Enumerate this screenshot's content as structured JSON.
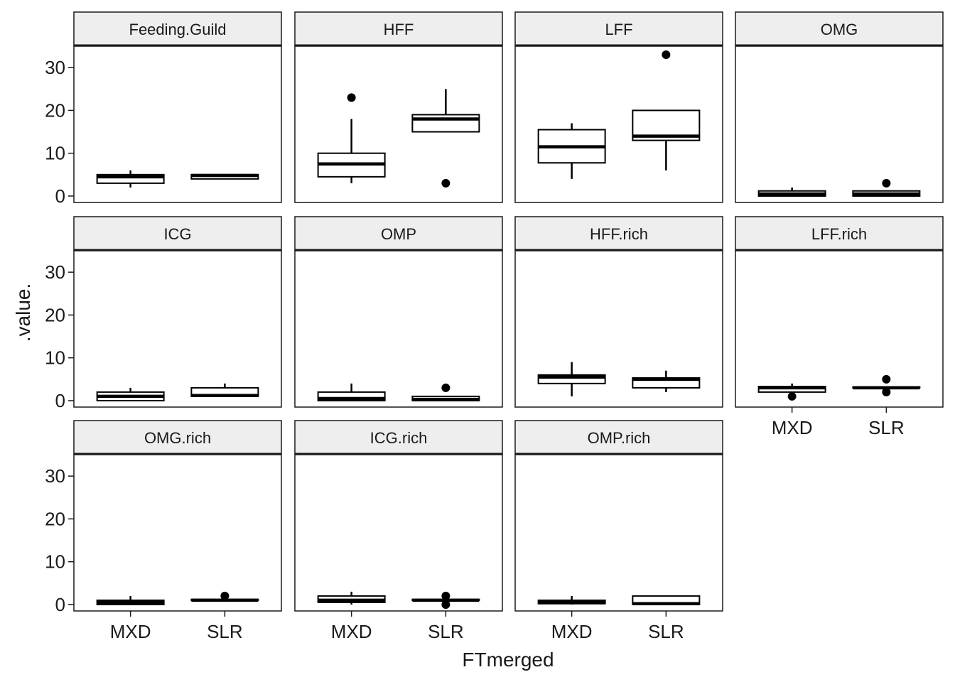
{
  "chart_data": {
    "type": "boxplot",
    "layout": "facet_wrap",
    "ncol": 4,
    "xlabel": "FTmerged",
    "ylabel": ".value.",
    "categories": [
      "MXD",
      "SLR"
    ],
    "ylim": [
      -1.5,
      35
    ],
    "yticks": [
      0,
      10,
      20,
      30
    ],
    "ytick_labels": [
      "0",
      "10",
      "20",
      "30"
    ],
    "panels": [
      {
        "name": "Feeding.Guild",
        "boxes": [
          {
            "category": "MXD",
            "whisker_low": 2,
            "q1": 3,
            "median": 4.5,
            "q3": 5,
            "whisker_high": 6,
            "outliers": []
          },
          {
            "category": "SLR",
            "whisker_low": 4,
            "q1": 4,
            "median": 4.8,
            "q3": 5,
            "whisker_high": 5,
            "outliers": []
          }
        ]
      },
      {
        "name": "HFF",
        "boxes": [
          {
            "category": "MXD",
            "whisker_low": 3,
            "q1": 4.5,
            "median": 7.5,
            "q3": 10,
            "whisker_high": 18,
            "outliers": [
              23
            ]
          },
          {
            "category": "SLR",
            "whisker_low": 15,
            "q1": 15,
            "median": 18,
            "q3": 19,
            "whisker_high": 25,
            "outliers": [
              3
            ]
          }
        ]
      },
      {
        "name": "LFF",
        "boxes": [
          {
            "category": "MXD",
            "whisker_low": 4,
            "q1": 7.75,
            "median": 11.5,
            "q3": 15.5,
            "whisker_high": 17,
            "outliers": []
          },
          {
            "category": "SLR",
            "whisker_low": 6,
            "q1": 13,
            "median": 14,
            "q3": 20,
            "whisker_high": 20,
            "outliers": [
              33
            ]
          }
        ]
      },
      {
        "name": "OMG",
        "boxes": [
          {
            "category": "MXD",
            "whisker_low": 0,
            "q1": 0,
            "median": 0.5,
            "q3": 1.2,
            "whisker_high": 2,
            "outliers": []
          },
          {
            "category": "SLR",
            "whisker_low": 0,
            "q1": 0,
            "median": 0.5,
            "q3": 1.2,
            "whisker_high": 1.2,
            "outliers": [
              3
            ]
          }
        ]
      },
      {
        "name": "ICG",
        "boxes": [
          {
            "category": "MXD",
            "whisker_low": 0,
            "q1": 0,
            "median": 1,
            "q3": 2,
            "whisker_high": 3,
            "outliers": []
          },
          {
            "category": "SLR",
            "whisker_low": 1,
            "q1": 1,
            "median": 1.2,
            "q3": 3,
            "whisker_high": 4,
            "outliers": []
          }
        ]
      },
      {
        "name": "OMP",
        "boxes": [
          {
            "category": "MXD",
            "whisker_low": 0,
            "q1": 0,
            "median": 0.5,
            "q3": 2,
            "whisker_high": 4,
            "outliers": []
          },
          {
            "category": "SLR",
            "whisker_low": 0,
            "q1": 0,
            "median": 0.3,
            "q3": 1,
            "whisker_high": 1,
            "outliers": [
              3
            ]
          }
        ]
      },
      {
        "name": "HFF.rich",
        "boxes": [
          {
            "category": "MXD",
            "whisker_low": 1,
            "q1": 4,
            "median": 5.5,
            "q3": 6,
            "whisker_high": 9,
            "outliers": []
          },
          {
            "category": "SLR",
            "whisker_low": 2,
            "q1": 3,
            "median": 5,
            "q3": 5.3,
            "whisker_high": 7,
            "outliers": []
          }
        ]
      },
      {
        "name": "LFF.rich",
        "boxes": [
          {
            "category": "MXD",
            "whisker_low": 2,
            "q1": 2,
            "median": 3,
            "q3": 3.3,
            "whisker_high": 4,
            "outliers": [
              1
            ]
          },
          {
            "category": "SLR",
            "whisker_low": 3,
            "q1": 3,
            "median": 3,
            "q3": 3.2,
            "whisker_high": 3.2,
            "outliers": [
              2,
              5
            ]
          }
        ]
      },
      {
        "name": "OMG.rich",
        "boxes": [
          {
            "category": "MXD",
            "whisker_low": 0,
            "q1": 0,
            "median": 0.5,
            "q3": 1,
            "whisker_high": 2,
            "outliers": []
          },
          {
            "category": "SLR",
            "whisker_low": 1,
            "q1": 1,
            "median": 1,
            "q3": 1.2,
            "whisker_high": 1.2,
            "outliers": [
              2
            ]
          }
        ]
      },
      {
        "name": "ICG.rich",
        "boxes": [
          {
            "category": "MXD",
            "whisker_low": 0,
            "q1": 0.5,
            "median": 1,
            "q3": 2,
            "whisker_high": 3,
            "outliers": []
          },
          {
            "category": "SLR",
            "whisker_low": 1,
            "q1": 1,
            "median": 1,
            "q3": 1.2,
            "whisker_high": 1.2,
            "outliers": [
              0,
              2
            ]
          }
        ]
      },
      {
        "name": "OMP.rich",
        "boxes": [
          {
            "category": "MXD",
            "whisker_low": 0,
            "q1": 0.2,
            "median": 0.5,
            "q3": 1,
            "whisker_high": 2,
            "outliers": []
          },
          {
            "category": "SLR",
            "whisker_low": 0,
            "q1": 0,
            "median": 0.2,
            "q3": 2,
            "whisker_high": 2,
            "outliers": []
          }
        ]
      }
    ]
  }
}
